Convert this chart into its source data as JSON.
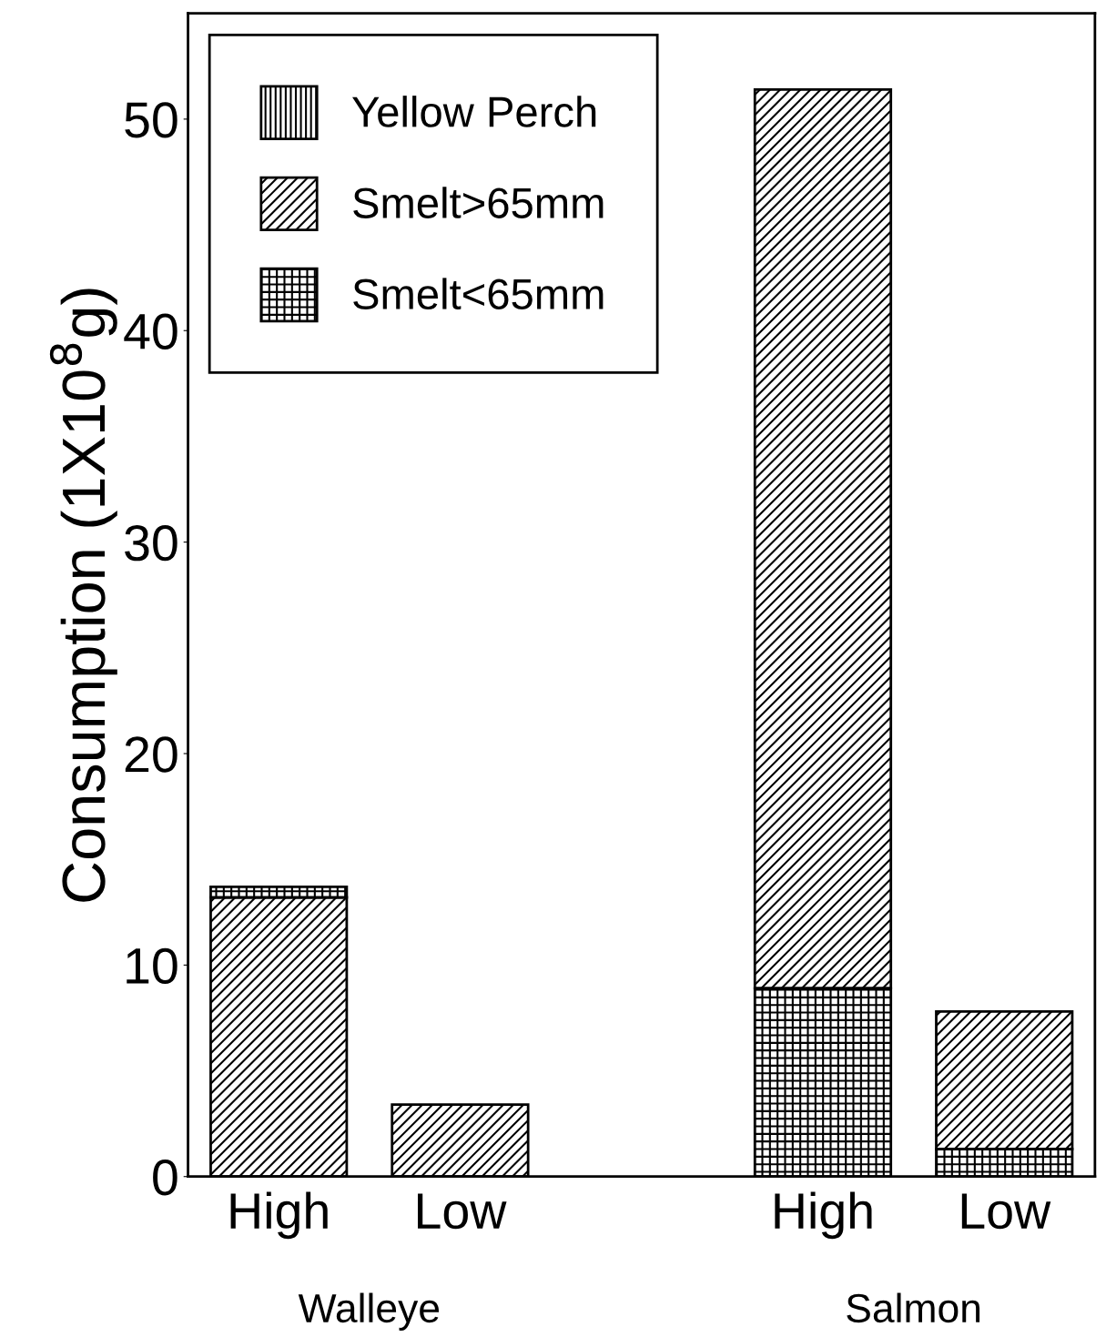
{
  "chart_data": {
    "type": "bar",
    "ylabel": "Consumption (1X10$^{8}$g)",
    "categories": [
      "High",
      "Low",
      null,
      "High",
      "Low"
    ],
    "annotations": [
      "Walleye",
      "Salmon"
    ],
    "series": [
      {
        "name": "Yellow Perch",
        "color": "#000000",
        "values": [
          null,
          null,
          null,
          null,
          null
        ]
      },
      {
        "name": "Smelt>65mm",
        "color": "#000000",
        "values": [
          13.2,
          3.4,
          null,
          42.5,
          6.5
        ],
        "base": [
          0,
          0,
          null,
          8.9,
          1.3
        ]
      },
      {
        "name": "Smelt<65mm",
        "color": "#000000",
        "values": [
          0.5,
          null,
          null,
          8.9,
          1.3
        ],
        "base": [
          13.2,
          null,
          null,
          0,
          0
        ]
      }
    ],
    "ylim": [
      0,
      55
    ],
    "yticks": [
      0,
      10,
      20,
      30,
      40,
      50
    ],
    "grid": false,
    "legend": "top left"
  }
}
